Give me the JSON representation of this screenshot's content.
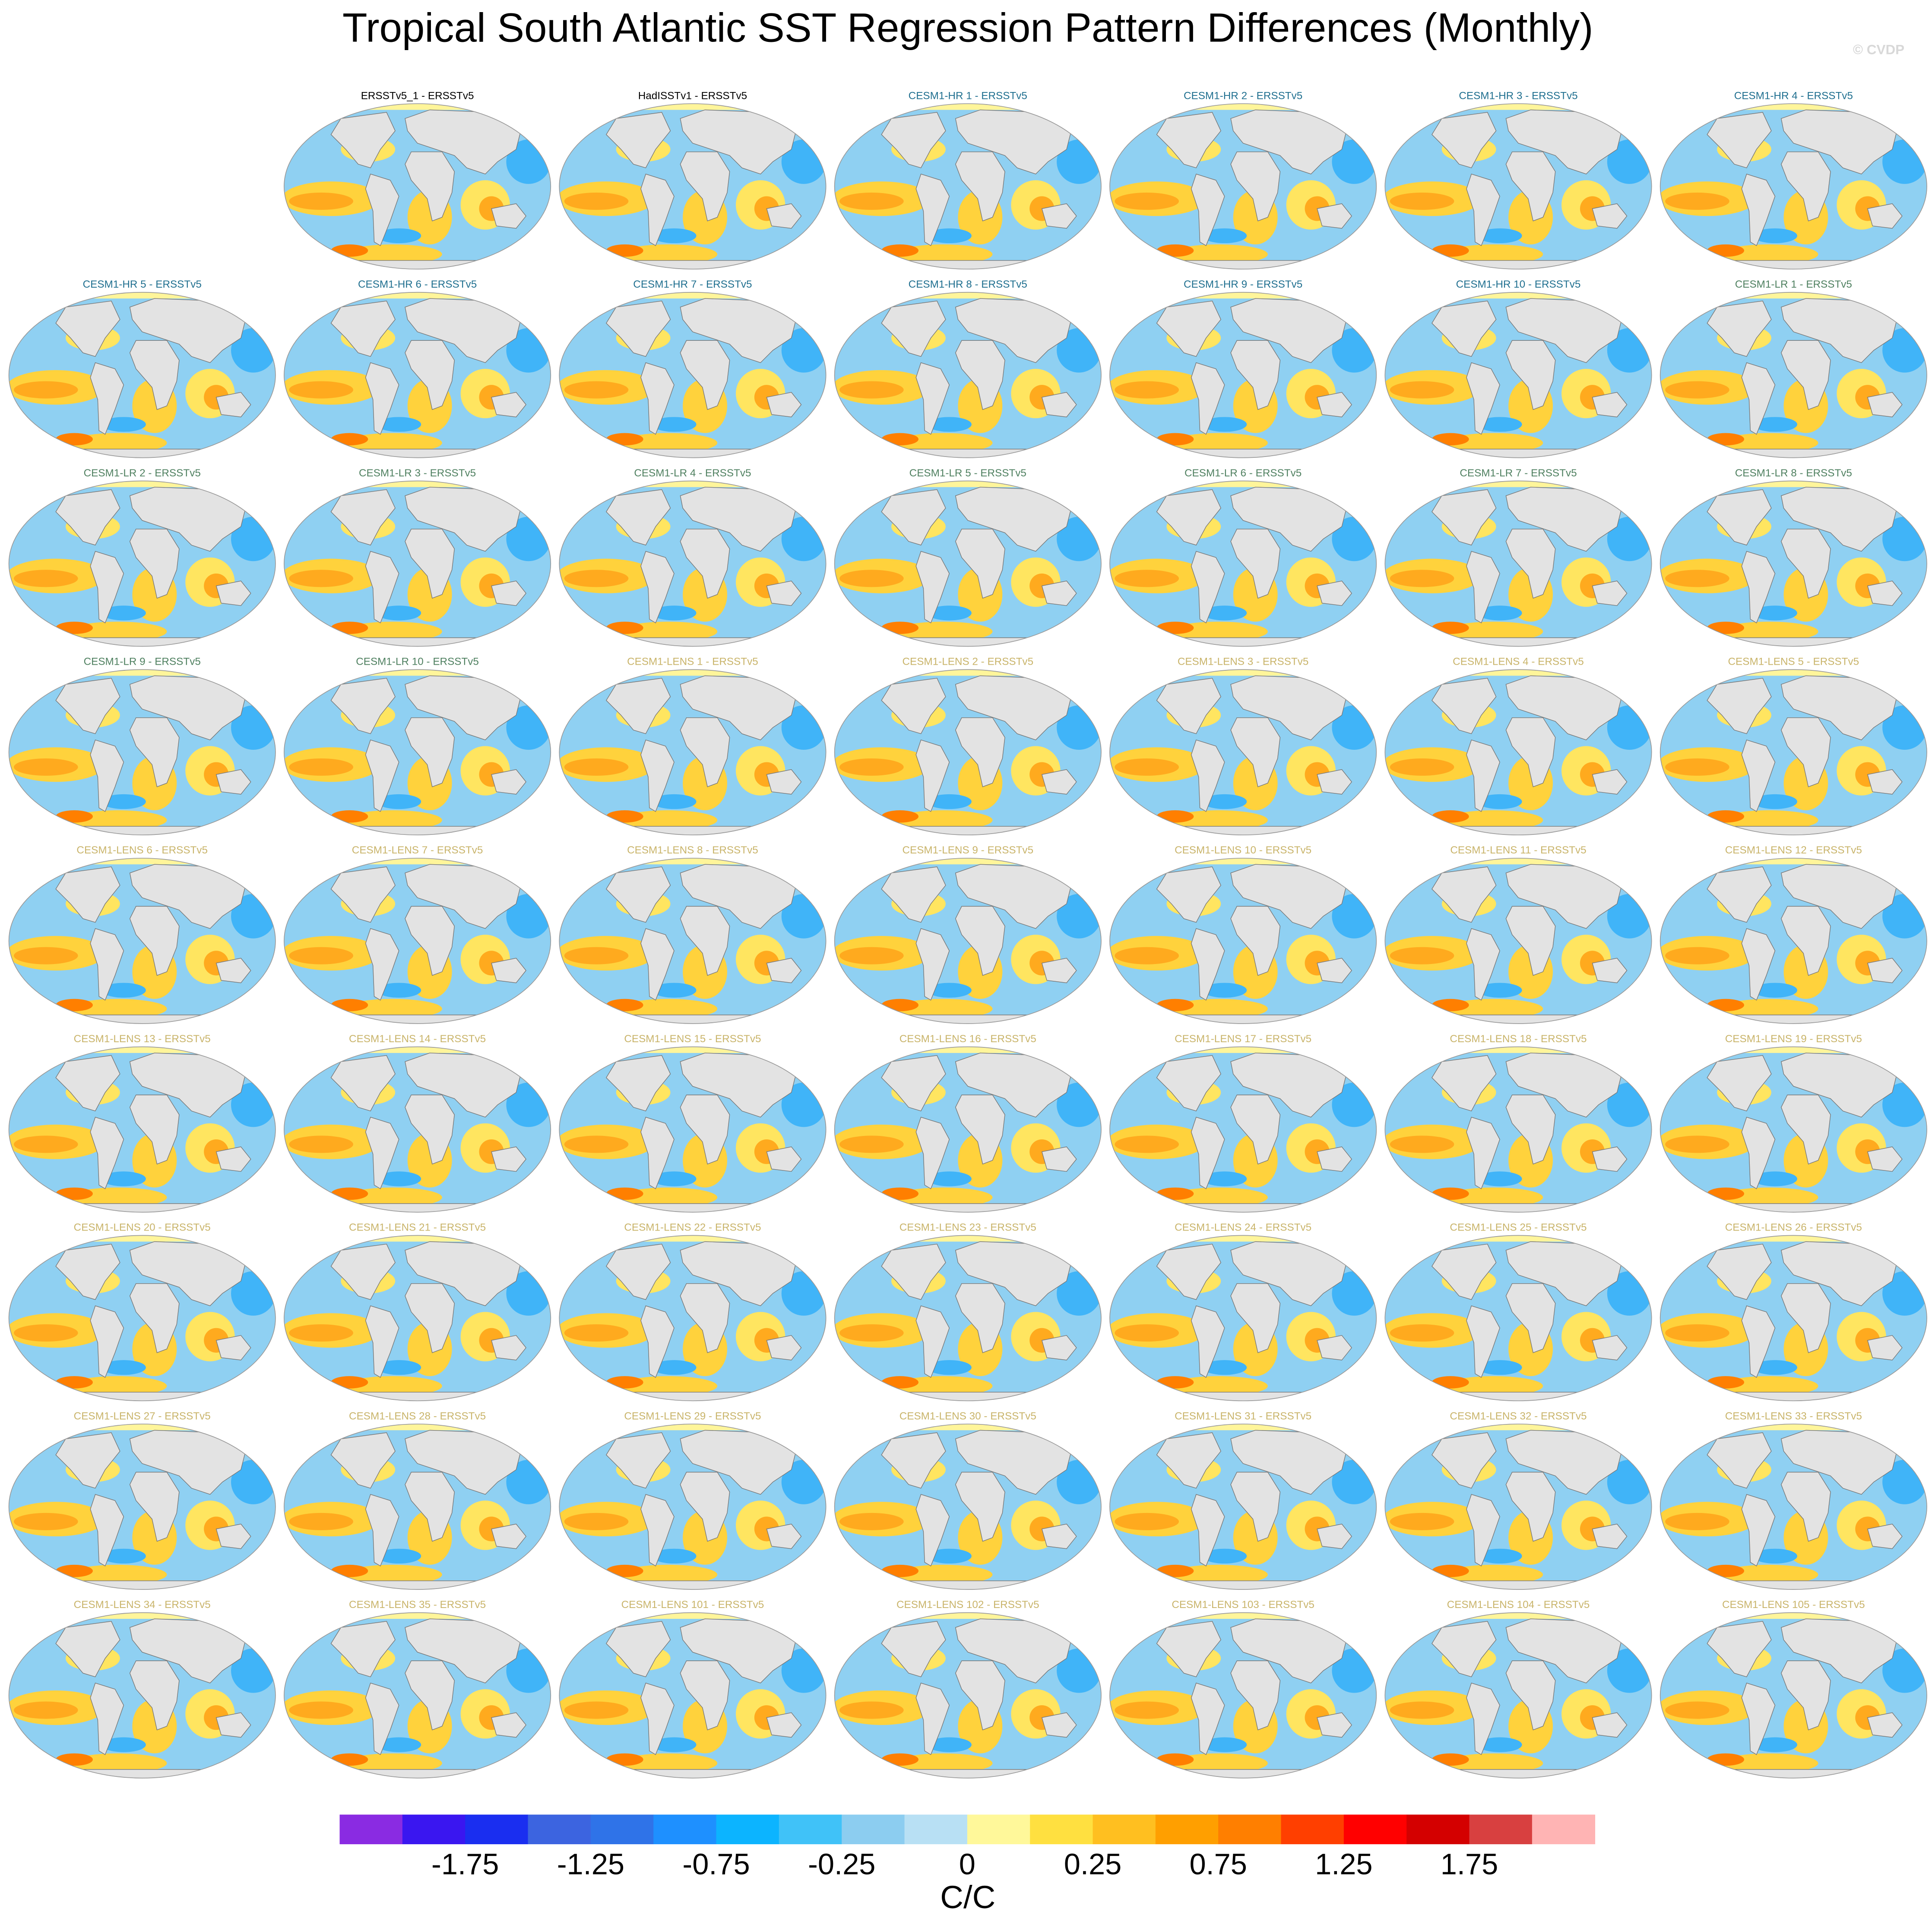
{
  "title": "Tropical South Atlantic SST Regression Pattern Differences (Monthly)",
  "credit": "© CVDP",
  "panels": [
    [
      {
        "title": "ERSSTv5_1 - ERSSTv5",
        "color": "#000000"
      },
      {
        "title": "HadISSTv1 - ERSSTv5",
        "color": "#000000"
      },
      {
        "title": "CESM1-HR 1 - ERSSTv5",
        "color": "#1f6f8f"
      },
      {
        "title": "CESM1-HR 2 - ERSSTv5",
        "color": "#1f6f8f"
      },
      {
        "title": "CESM1-HR 3 - ERSSTv5",
        "color": "#1f6f8f"
      },
      {
        "title": "CESM1-HR 4 - ERSSTv5",
        "color": "#1f6f8f"
      }
    ],
    [
      {
        "title": "CESM1-HR 5 - ERSSTv5",
        "color": "#1f6f8f"
      },
      {
        "title": "CESM1-HR 6 - ERSSTv5",
        "color": "#1f6f8f"
      },
      {
        "title": "CESM1-HR 7 - ERSSTv5",
        "color": "#1f6f8f"
      },
      {
        "title": "CESM1-HR 8 - ERSSTv5",
        "color": "#1f6f8f"
      },
      {
        "title": "CESM1-HR 9 - ERSSTv5",
        "color": "#1f6f8f"
      },
      {
        "title": "CESM1-HR 10 - ERSSTv5",
        "color": "#1f6f8f"
      },
      {
        "title": "CESM1-LR 1 - ERSSTv5",
        "color": "#4f8060"
      }
    ],
    [
      {
        "title": "CESM1-LR 2 - ERSSTv5",
        "color": "#4f8060"
      },
      {
        "title": "CESM1-LR 3 - ERSSTv5",
        "color": "#4f8060"
      },
      {
        "title": "CESM1-LR 4 - ERSSTv5",
        "color": "#4f8060"
      },
      {
        "title": "CESM1-LR 5 - ERSSTv5",
        "color": "#4f8060"
      },
      {
        "title": "CESM1-LR 6 - ERSSTv5",
        "color": "#4f8060"
      },
      {
        "title": "CESM1-LR 7 - ERSSTv5",
        "color": "#4f8060"
      },
      {
        "title": "CESM1-LR 8 - ERSSTv5",
        "color": "#4f8060"
      }
    ],
    [
      {
        "title": "CESM1-LR 9 - ERSSTv5",
        "color": "#4f8060"
      },
      {
        "title": "CESM1-LR 10 - ERSSTv5",
        "color": "#4f8060"
      },
      {
        "title": "CESM1-LENS 1 - ERSSTv5",
        "color": "#c9b46a"
      },
      {
        "title": "CESM1-LENS 2 - ERSSTv5",
        "color": "#c9b46a"
      },
      {
        "title": "CESM1-LENS 3 - ERSSTv5",
        "color": "#c9b46a"
      },
      {
        "title": "CESM1-LENS 4 - ERSSTv5",
        "color": "#c9b46a"
      },
      {
        "title": "CESM1-LENS 5 - ERSSTv5",
        "color": "#c9b46a"
      }
    ],
    [
      {
        "title": "CESM1-LENS 6 - ERSSTv5",
        "color": "#c9b46a"
      },
      {
        "title": "CESM1-LENS 7 - ERSSTv5",
        "color": "#c9b46a"
      },
      {
        "title": "CESM1-LENS 8 - ERSSTv5",
        "color": "#c9b46a"
      },
      {
        "title": "CESM1-LENS 9 - ERSSTv5",
        "color": "#c9b46a"
      },
      {
        "title": "CESM1-LENS 10 - ERSSTv5",
        "color": "#c9b46a"
      },
      {
        "title": "CESM1-LENS 11 - ERSSTv5",
        "color": "#c9b46a"
      },
      {
        "title": "CESM1-LENS 12 - ERSSTv5",
        "color": "#c9b46a"
      }
    ],
    [
      {
        "title": "CESM1-LENS 13 - ERSSTv5",
        "color": "#c9b46a"
      },
      {
        "title": "CESM1-LENS 14 - ERSSTv5",
        "color": "#c9b46a"
      },
      {
        "title": "CESM1-LENS 15 - ERSSTv5",
        "color": "#c9b46a"
      },
      {
        "title": "CESM1-LENS 16 - ERSSTv5",
        "color": "#c9b46a"
      },
      {
        "title": "CESM1-LENS 17 - ERSSTv5",
        "color": "#c9b46a"
      },
      {
        "title": "CESM1-LENS 18 - ERSSTv5",
        "color": "#c9b46a"
      },
      {
        "title": "CESM1-LENS 19 - ERSSTv5",
        "color": "#c9b46a"
      }
    ],
    [
      {
        "title": "CESM1-LENS 20 - ERSSTv5",
        "color": "#c9b46a"
      },
      {
        "title": "CESM1-LENS 21 - ERSSTv5",
        "color": "#c9b46a"
      },
      {
        "title": "CESM1-LENS 22 - ERSSTv5",
        "color": "#c9b46a"
      },
      {
        "title": "CESM1-LENS 23 - ERSSTv5",
        "color": "#c9b46a"
      },
      {
        "title": "CESM1-LENS 24 - ERSSTv5",
        "color": "#c9b46a"
      },
      {
        "title": "CESM1-LENS 25 - ERSSTv5",
        "color": "#c9b46a"
      },
      {
        "title": "CESM1-LENS 26 - ERSSTv5",
        "color": "#c9b46a"
      }
    ],
    [
      {
        "title": "CESM1-LENS 27 - ERSSTv5",
        "color": "#c9b46a"
      },
      {
        "title": "CESM1-LENS 28 - ERSSTv5",
        "color": "#c9b46a"
      },
      {
        "title": "CESM1-LENS 29 - ERSSTv5",
        "color": "#c9b46a"
      },
      {
        "title": "CESM1-LENS 30 - ERSSTv5",
        "color": "#c9b46a"
      },
      {
        "title": "CESM1-LENS 31 - ERSSTv5",
        "color": "#c9b46a"
      },
      {
        "title": "CESM1-LENS 32 - ERSSTv5",
        "color": "#c9b46a"
      },
      {
        "title": "CESM1-LENS 33 - ERSSTv5",
        "color": "#c9b46a"
      }
    ],
    [
      {
        "title": "CESM1-LENS 34 - ERSSTv5",
        "color": "#c9b46a"
      },
      {
        "title": "CESM1-LENS 35 - ERSSTv5",
        "color": "#c9b46a"
      },
      {
        "title": "CESM1-LENS 101 - ERSSTv5",
        "color": "#c9b46a"
      },
      {
        "title": "CESM1-LENS 102 - ERSSTv5",
        "color": "#c9b46a"
      },
      {
        "title": "CESM1-LENS 103 - ERSSTv5",
        "color": "#c9b46a"
      },
      {
        "title": "CESM1-LENS 104 - ERSSTv5",
        "color": "#c9b46a"
      },
      {
        "title": "CESM1-LENS 105 - ERSSTv5",
        "color": "#c9b46a"
      }
    ]
  ],
  "colorbar": {
    "label": "C/C",
    "levels": [
      -2,
      -1.75,
      -1.5,
      -1.25,
      -1,
      -0.75,
      -0.5,
      -0.25,
      -0.1,
      0,
      0.1,
      0.25,
      0.5,
      0.75,
      1,
      1.25,
      1.5,
      1.75,
      2
    ],
    "colors": [
      "#8a2be2",
      "#3a16f0",
      "#1a2ef0",
      "#3c64e0",
      "#2f73e8",
      "#1e90ff",
      "#0cb4ff",
      "#40c2f8",
      "#8ccdf0",
      "#b8e0f4",
      "#fff89a",
      "#ffe040",
      "#ffbf20",
      "#ff9f00",
      "#ff7f00",
      "#ff3f00",
      "#ff0000",
      "#d40000",
      "#d84040",
      "#ffb4b4"
    ],
    "ticks": [
      -1.75,
      -1.25,
      -0.75,
      -0.25,
      0,
      0.25,
      0.75,
      1.25,
      1.75
    ]
  }
}
